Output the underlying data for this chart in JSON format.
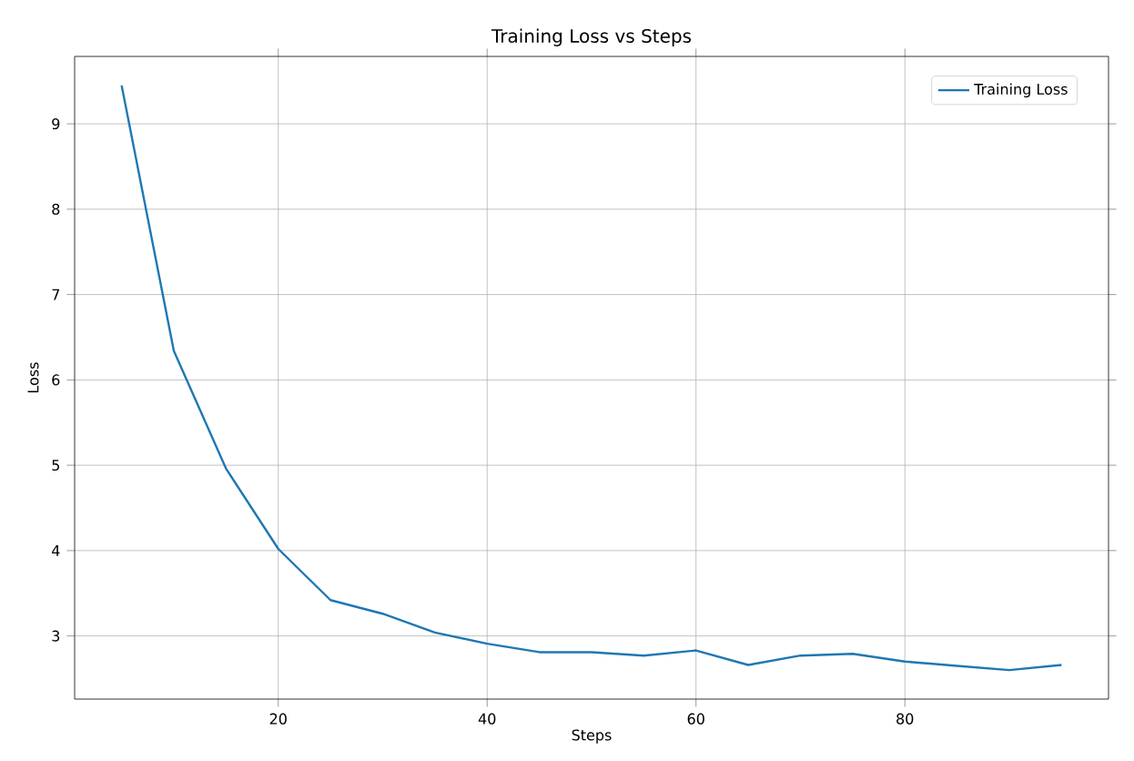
{
  "chart_data": {
    "type": "line",
    "title": "Training Loss vs Steps",
    "xlabel": "Steps",
    "ylabel": "Loss",
    "x": [
      5,
      10,
      15,
      20,
      25,
      30,
      35,
      40,
      45,
      50,
      55,
      60,
      65,
      70,
      75,
      80,
      85,
      90,
      95
    ],
    "series": [
      {
        "name": "Training Loss",
        "color": "#1f77b4",
        "values": [
          9.45,
          6.34,
          4.96,
          4.02,
          3.42,
          3.26,
          3.04,
          2.91,
          2.81,
          2.81,
          2.77,
          2.83,
          2.66,
          2.77,
          2.79,
          2.7,
          2.65,
          2.6,
          2.66
        ]
      }
    ],
    "xlim": [
      0.5,
      99.5
    ],
    "ylim": [
      2.26,
      9.79
    ],
    "xticks": [
      20,
      40,
      60,
      80
    ],
    "yticks": [
      3,
      4,
      5,
      6,
      7,
      8,
      9
    ],
    "grid": true,
    "legend": "top right",
    "marker": "none",
    "line_style": "solid"
  }
}
